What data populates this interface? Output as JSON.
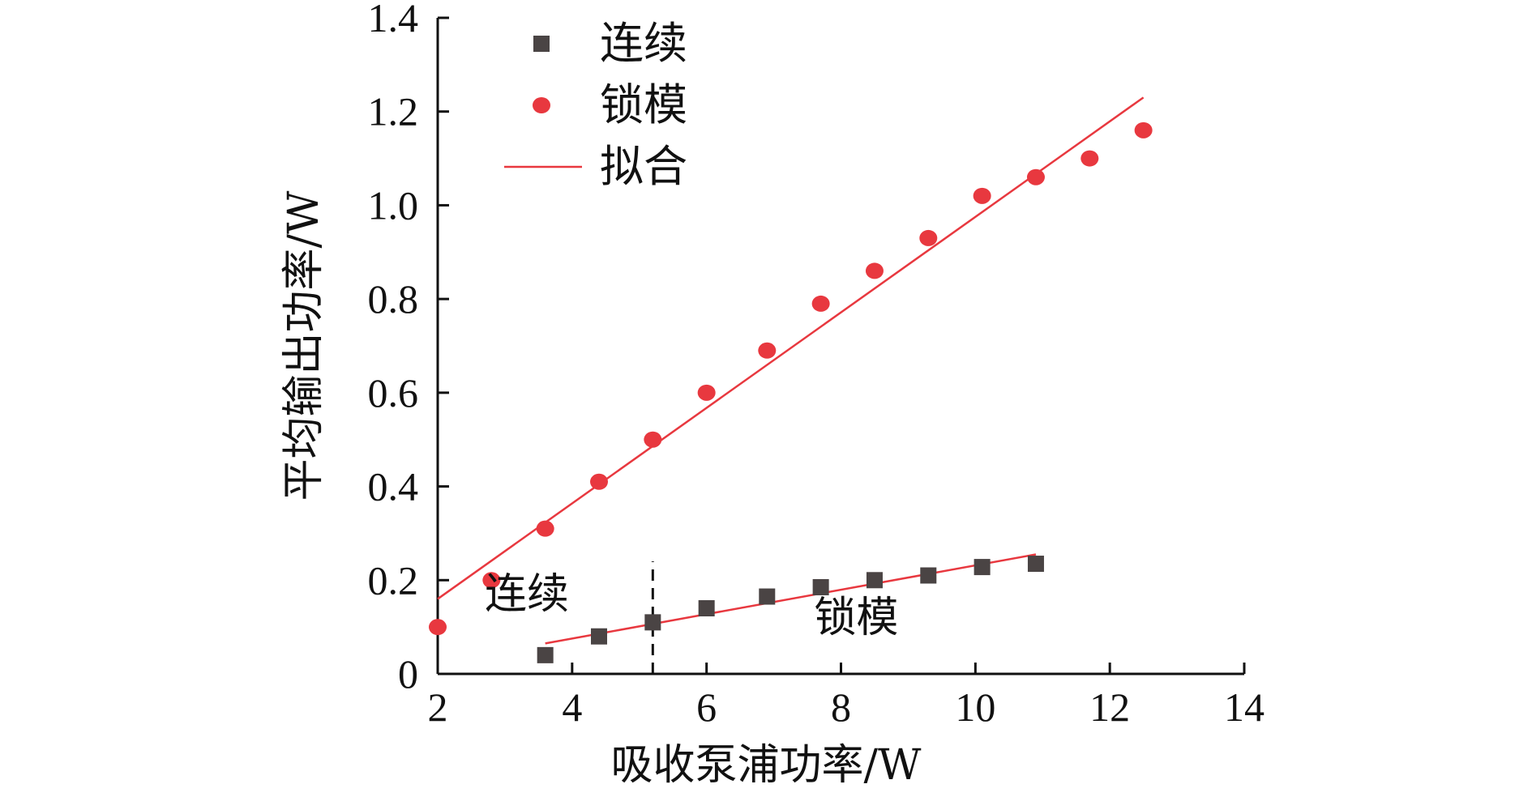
{
  "colors": {
    "continuous": "#4a4444",
    "mode_locked": "#e8383f",
    "fit": "#e8383f",
    "axis": "#111111"
  },
  "chart_data": {
    "type": "scatter",
    "xlabel": "吸收泵浦功率/W",
    "ylabel": "平均输出功率/W",
    "xlim": [
      2,
      14
    ],
    "ylim": [
      0,
      1.4
    ],
    "x_ticks": [
      2,
      4,
      6,
      8,
      10,
      12,
      14
    ],
    "y_ticks": [
      0,
      0.2,
      0.4,
      0.6,
      0.8,
      1.0,
      1.2,
      1.4
    ],
    "x_tick_labels": [
      "2",
      "4",
      "6",
      "8",
      "10",
      "12",
      "14"
    ],
    "y_tick_labels": [
      "0",
      "0.2",
      "0.4",
      "0.6",
      "0.8",
      "1.0",
      "1.2",
      "1.4"
    ],
    "legend_position": "top-left",
    "grid": false,
    "series": [
      {
        "name": "连续",
        "marker": "square",
        "x": [
          3.6,
          4.4,
          5.2,
          6.0,
          6.9,
          7.7,
          8.5,
          9.3,
          10.1,
          10.9
        ],
        "y": [
          0.04,
          0.08,
          0.11,
          0.14,
          0.165,
          0.185,
          0.2,
          0.21,
          0.228,
          0.235
        ]
      },
      {
        "name": "锁模",
        "marker": "circle",
        "x": [
          2.0,
          2.8,
          3.6,
          4.4,
          5.2,
          6.0,
          6.9,
          7.7,
          8.5,
          9.3,
          10.1,
          10.9,
          11.7,
          12.5
        ],
        "y": [
          0.1,
          0.2,
          0.31,
          0.41,
          0.5,
          0.6,
          0.69,
          0.79,
          0.86,
          0.93,
          1.02,
          1.06,
          1.1,
          1.16
        ]
      }
    ],
    "fits": [
      {
        "name": "拟合",
        "x": [
          2.0,
          12.5
        ],
        "y": [
          0.16,
          1.23
        ]
      },
      {
        "name": "拟合",
        "x": [
          3.6,
          10.9
        ],
        "y": [
          0.065,
          0.255
        ]
      }
    ],
    "divider": {
      "x": 5.2,
      "y_range": [
        0,
        0.24
      ]
    },
    "annotations": [
      {
        "text": "连续",
        "x": 2.7,
        "y": 0.14
      },
      {
        "text": "锁模",
        "x": 7.6,
        "y": 0.09
      }
    ],
    "legend": [
      {
        "label": "连续",
        "marker": "square"
      },
      {
        "label": "锁模",
        "marker": "circle"
      },
      {
        "label": "拟合",
        "marker": "line"
      }
    ]
  }
}
